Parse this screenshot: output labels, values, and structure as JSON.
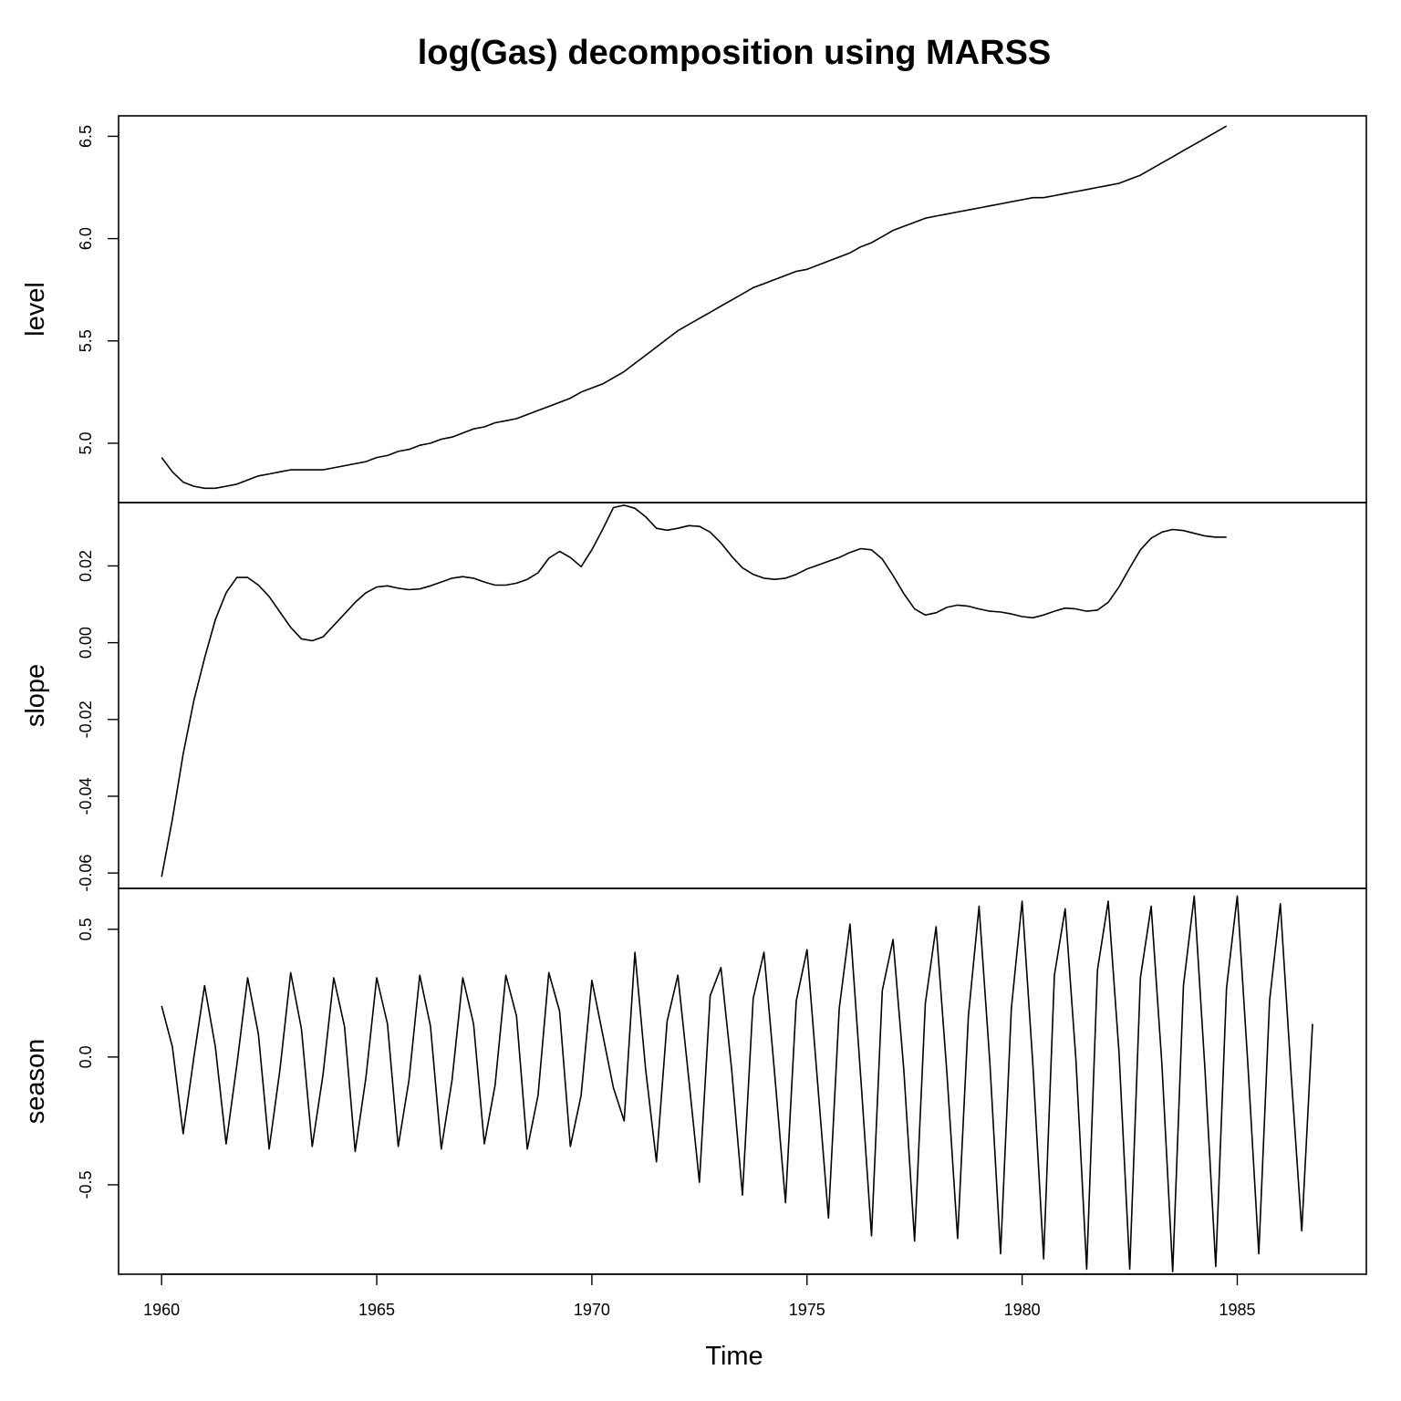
{
  "chart_data": {
    "type": "line",
    "title": "log(Gas) decomposition using MARSS",
    "xlabel": "Time",
    "xlim": [
      1959.0,
      1988.0
    ],
    "x_ticks": [
      "1960",
      "1965",
      "1970",
      "1975",
      "1980",
      "1985"
    ],
    "x_start": 1960.0,
    "x_step": 0.25,
    "panels": [
      {
        "name": "level",
        "ylabel": "level",
        "ylim": [
          4.71,
          6.6
        ],
        "y_ticks": [
          "5.0",
          "5.5",
          "6.0",
          "6.5"
        ],
        "values": [
          4.93,
          4.86,
          4.81,
          4.79,
          4.78,
          4.78,
          4.79,
          4.8,
          4.82,
          4.84,
          4.85,
          4.86,
          4.87,
          4.87,
          4.87,
          4.87,
          4.88,
          4.89,
          4.9,
          4.91,
          4.93,
          4.94,
          4.96,
          4.97,
          4.99,
          5.0,
          5.02,
          5.03,
          5.05,
          5.07,
          5.08,
          5.1,
          5.11,
          5.12,
          5.14,
          5.16,
          5.18,
          5.2,
          5.22,
          5.25,
          5.27,
          5.29,
          5.32,
          5.35,
          5.39,
          5.43,
          5.47,
          5.51,
          5.55,
          5.58,
          5.61,
          5.64,
          5.67,
          5.7,
          5.73,
          5.76,
          5.78,
          5.8,
          5.82,
          5.84,
          5.85,
          5.87,
          5.89,
          5.91,
          5.93,
          5.96,
          5.98,
          6.01,
          6.04,
          6.06,
          6.08,
          6.1,
          6.11,
          6.12,
          6.13,
          6.14,
          6.15,
          6.16,
          6.17,
          6.18,
          6.19,
          6.2,
          6.2,
          6.21,
          6.22,
          6.23,
          6.24,
          6.25,
          6.26,
          6.27,
          6.29,
          6.31,
          6.34,
          6.37,
          6.4,
          6.43,
          6.46,
          6.49,
          6.52,
          6.55
        ]
      },
      {
        "name": "slope",
        "ylabel": "slope",
        "ylim": [
          -0.064,
          0.0365
        ],
        "y_ticks": [
          "-0.06",
          "-0.04",
          "-0.02",
          "0.00",
          "0.02"
        ],
        "y_tick_values": [
          -0.06,
          -0.04,
          -0.02,
          0.0,
          0.02
        ],
        "values": [
          -0.061,
          -0.046,
          -0.029,
          -0.015,
          -0.004,
          0.006,
          0.013,
          0.017,
          0.017,
          0.015,
          0.012,
          0.008,
          0.004,
          0.001,
          0.0005,
          0.0015,
          0.0045,
          0.0075,
          0.0105,
          0.013,
          0.0145,
          0.0148,
          0.0142,
          0.0138,
          0.014,
          0.0148,
          0.0158,
          0.0168,
          0.0172,
          0.0168,
          0.0158,
          0.015,
          0.015,
          0.0155,
          0.0165,
          0.0182,
          0.022,
          0.0238,
          0.0222,
          0.0198,
          0.0242,
          0.0295,
          0.0352,
          0.0358,
          0.035,
          0.0328,
          0.0298,
          0.0293,
          0.0298,
          0.0305,
          0.0303,
          0.0288,
          0.026,
          0.0225,
          0.0195,
          0.0178,
          0.0168,
          0.0165,
          0.0168,
          0.0178,
          0.0192,
          0.0202,
          0.0212,
          0.0222,
          0.0235,
          0.0245,
          0.0242,
          0.0218,
          0.0175,
          0.0128,
          0.0088,
          0.0072,
          0.0078,
          0.0092,
          0.0098,
          0.0095,
          0.0088,
          0.0082,
          0.008,
          0.0075,
          0.0068,
          0.0065,
          0.0072,
          0.0082,
          0.009,
          0.0088,
          0.0082,
          0.0085,
          0.0105,
          0.0145,
          0.0195,
          0.0242,
          0.0272,
          0.0288,
          0.0295,
          0.0292,
          0.0285,
          0.0278,
          0.0275,
          0.0275
        ]
      },
      {
        "name": "season",
        "ylabel": "season",
        "ylim": [
          -0.85,
          0.66
        ],
        "y_ticks": [
          "-0.5",
          "0.0",
          "0.5"
        ],
        "y_tick_values": [
          -0.5,
          0.0,
          0.5
        ],
        "values": [
          0.2,
          0.04,
          -0.3,
          0.0,
          0.28,
          0.04,
          -0.34,
          -0.03,
          0.31,
          0.09,
          -0.36,
          -0.05,
          0.33,
          0.11,
          -0.35,
          -0.07,
          0.31,
          0.12,
          -0.37,
          -0.08,
          0.31,
          0.13,
          -0.35,
          -0.09,
          0.32,
          0.12,
          -0.36,
          -0.09,
          0.31,
          0.13,
          -0.34,
          -0.11,
          0.32,
          0.16,
          -0.36,
          -0.15,
          0.33,
          0.18,
          -0.35,
          -0.15,
          0.3,
          0.09,
          -0.12,
          -0.25,
          0.41,
          -0.05,
          -0.41,
          0.14,
          0.32,
          -0.08,
          -0.49,
          0.24,
          0.35,
          -0.05,
          -0.54,
          0.23,
          0.41,
          -0.07,
          -0.57,
          0.22,
          0.42,
          -0.11,
          -0.63,
          0.19,
          0.52,
          -0.08,
          -0.7,
          0.26,
          0.46,
          -0.05,
          -0.72,
          0.21,
          0.51,
          -0.06,
          -0.71,
          0.16,
          0.59,
          -0.02,
          -0.77,
          0.19,
          0.61,
          -0.03,
          -0.79,
          0.32,
          0.58,
          -0.01,
          -0.83,
          0.34,
          0.61,
          0.02,
          -0.83,
          0.31,
          0.59,
          -0.03,
          -0.84,
          0.28,
          0.63,
          -0.05,
          -0.82,
          0.27,
          0.63,
          -0.04,
          -0.77,
          0.22,
          0.6,
          -0.06,
          -0.68,
          0.13
        ]
      }
    ]
  }
}
